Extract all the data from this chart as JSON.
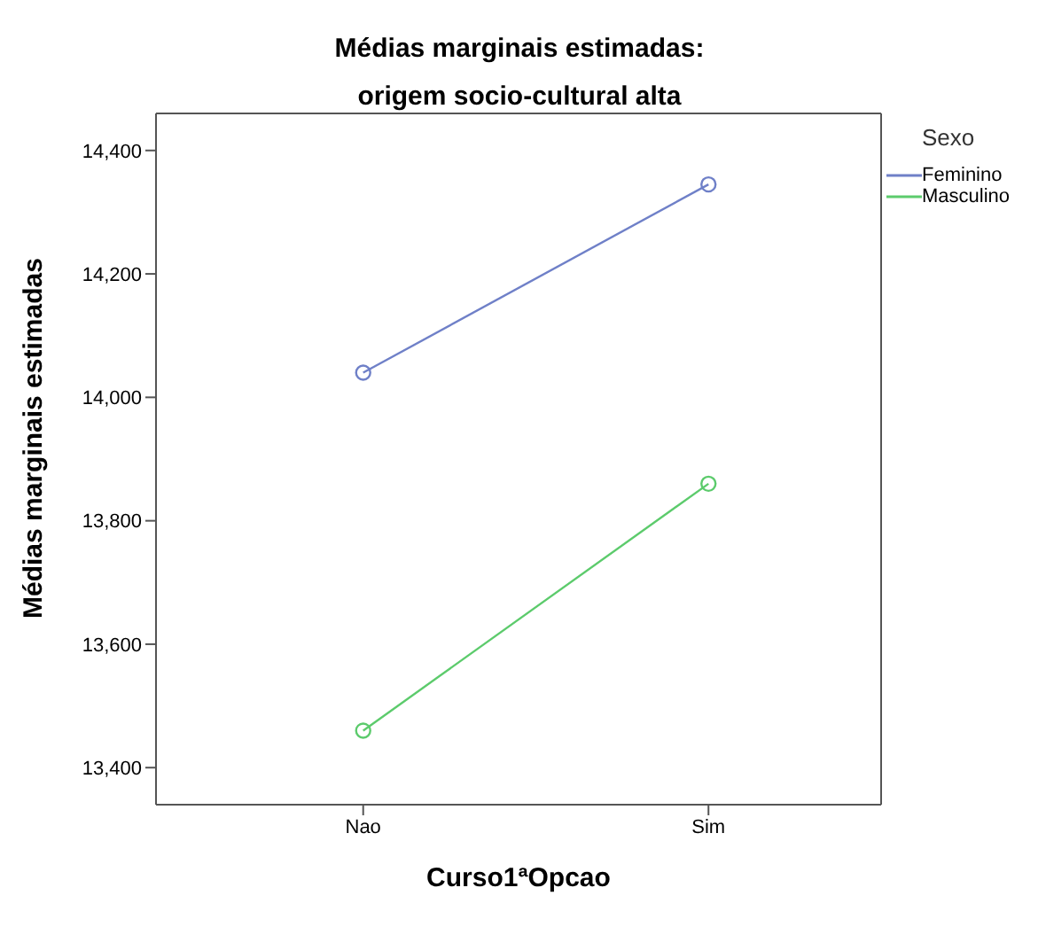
{
  "chart_data": {
    "type": "line",
    "title": "Médias marginais estimadas:",
    "subtitle": "origem socio-cultural alta",
    "xlabel": "Curso1ªOpcao",
    "ylabel": "Médias marginais estimadas",
    "legend_title": "Sexo",
    "categories": [
      "Nao",
      "Sim"
    ],
    "series": [
      {
        "name": "Feminino",
        "color": "#6f80c8",
        "values": [
          14040,
          14345
        ]
      },
      {
        "name": "Masculino",
        "color": "#5ccb6c",
        "values": [
          13460,
          13860
        ]
      }
    ],
    "ylim": [
      13340,
      14460
    ],
    "yticks": [
      {
        "value": 13400,
        "label": "13,400"
      },
      {
        "value": 13600,
        "label": "13,600"
      },
      {
        "value": 13800,
        "label": "13,800"
      },
      {
        "value": 14000,
        "label": "14,000"
      },
      {
        "value": 14200,
        "label": "14,200"
      },
      {
        "value": 14400,
        "label": "14,400"
      }
    ],
    "grid": false,
    "legend": "top right",
    "marker": "circle",
    "line_style": "solid"
  }
}
